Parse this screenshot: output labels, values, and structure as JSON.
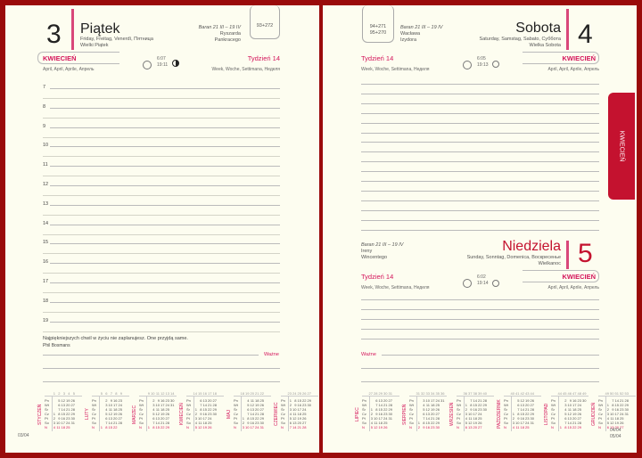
{
  "left": {
    "day_number": "3",
    "day_name": "Piątek",
    "day_translations": "Friday, Freitag, Venerdì, Пятница",
    "holiday": "Wielki Piątek",
    "zodiac": "Baran 21 III – 19 IV",
    "namedays": [
      "Ryszarda",
      "Pankracego"
    ],
    "day_count": "93+272",
    "month": "KWIECIEŃ",
    "month_translations": "April, April, Aprile, Апрель",
    "sunrise": "6:07",
    "sunset": "19:11",
    "moon_phase": "first-quarter-icon",
    "week": "Tydzień 14",
    "week_translations": "Week, Woche, Settimana, Неделя",
    "hours": [
      "7",
      "8",
      "9",
      "10",
      "11",
      "12",
      "13",
      "14",
      "15",
      "16",
      "17",
      "18",
      "19"
    ],
    "quote": "Najpiękniejszych chwil w życiu nie zaplanujesz. One przyjdą same.",
    "quote_author": "Phil Bosmans",
    "important": "Ważne",
    "footer": "03/04"
  },
  "right": {
    "sat": {
      "day_number": "4",
      "day_name": "Sobota",
      "day_translations": "Saturday, Samstag, Sabato, Суббота",
      "holiday": "Wielka Sobota",
      "zodiac": "Baran 21 III – 19 IV",
      "namedays": [
        "Wacława",
        "Izydora"
      ],
      "day_count": "94+271",
      "day_count2": "95+270",
      "week": "Tydzień 14",
      "week_translations": "Week, Woche, Settimana, Неделя",
      "sunrise": "6:05",
      "sunset": "19:13",
      "month": "KWIECIEŃ",
      "month_translations": "April, April, Aprile, Апрель"
    },
    "sun": {
      "day_number": "5",
      "day_name": "Niedziela",
      "day_translations": "Sunday, Sonntag, Domenica, Воскресенье",
      "holiday": "Wielkanoc",
      "zodiac": "Baran 21 III – 19 IV",
      "namedays": [
        "Ireny",
        "Wincentego"
      ],
      "week": "Tydzień 14",
      "week_translations": "Week, Woche, Settimana, Неделя",
      "sunrise": "6:02",
      "sunset": "19:14",
      "month": "KWIECIEŃ",
      "month_translations": "April, April, Aprile, Апрель"
    },
    "important": "Ważne",
    "footer1": "04/04",
    "footer2": "05/04"
  },
  "tab_label": "KWIECIEŃ",
  "weekday_abbr": [
    "Pn",
    "Wt",
    "Śr",
    "Cz",
    "Pt",
    "So",
    "N"
  ],
  "calendars_left": [
    {
      "name": "STYCZEŃ",
      "start": 3,
      "days": 31,
      "first_week": 1
    },
    {
      "name": "LUTY",
      "start": 6,
      "days": 28,
      "first_week": 5
    },
    {
      "name": "MARZEC",
      "start": 6,
      "days": 31,
      "first_week": 9
    },
    {
      "name": "KWIECIEŃ",
      "start": 2,
      "days": 30,
      "first_week": 14
    },
    {
      "name": "MAJ",
      "start": 4,
      "days": 31,
      "first_week": 18
    },
    {
      "name": "CZERWIEC",
      "start": 0,
      "days": 30,
      "first_week": 23
    }
  ],
  "calendars_right": [
    {
      "name": "LIPIEC",
      "start": 2,
      "days": 31,
      "first_week": 27
    },
    {
      "name": "SIERPIEŃ",
      "start": 5,
      "days": 31,
      "first_week": 31
    },
    {
      "name": "WRZESIEŃ",
      "start": 1,
      "days": 30,
      "first_week": 36
    },
    {
      "name": "PAŹDZIERNIK",
      "start": 3,
      "days": 31,
      "first_week": 40
    },
    {
      "name": "LISTOPAD",
      "start": 6,
      "days": 30,
      "first_week": 44
    },
    {
      "name": "GRUDZIEŃ",
      "start": 1,
      "days": 31,
      "first_week": 49
    }
  ],
  "colors": {
    "frame": "#9a0b0b",
    "paper": "#fdfdf0",
    "accent": "#d4145a",
    "tab": "#c4122f"
  }
}
